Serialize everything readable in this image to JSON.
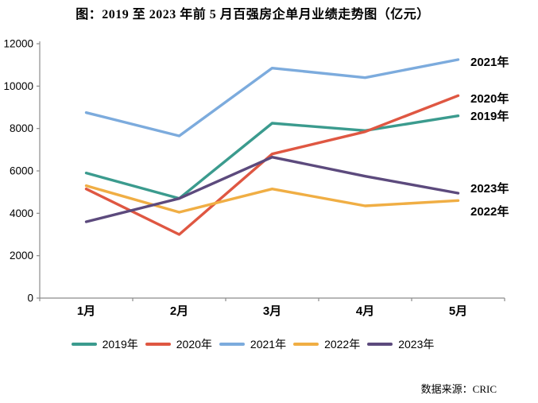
{
  "chart_data": {
    "type": "line",
    "title": "图：2019 至 2023 年前 5 月百强房企单月业绩走势图（亿元）",
    "unit": "亿元",
    "source": "数据来源：CRIC",
    "categories": [
      "1月",
      "2月",
      "3月",
      "4月",
      "5月"
    ],
    "series": [
      {
        "name": "2019年",
        "color": "#3B9B8E",
        "values": [
          5900,
          4700,
          8250,
          7900,
          8600
        ],
        "label_y": 151
      },
      {
        "name": "2020年",
        "color": "#DF5742",
        "values": [
          5150,
          3000,
          6800,
          7850,
          9550
        ],
        "label_y": 129
      },
      {
        "name": "2021年",
        "color": "#7CABDD",
        "values": [
          8750,
          7650,
          10850,
          10400,
          11250
        ],
        "label_y": 83
      },
      {
        "name": "2022年",
        "color": "#F0AE44",
        "values": [
          5300,
          4050,
          5150,
          4350,
          4600
        ],
        "label_y": 271
      },
      {
        "name": "2023年",
        "color": "#5C4A7D",
        "values": [
          3600,
          4700,
          6650,
          5750,
          4950
        ],
        "label_y": 242
      }
    ],
    "ylim": [
      0,
      12000
    ],
    "yticks": [
      0,
      2000,
      4000,
      6000,
      8000,
      10000,
      12000
    ],
    "right_label_x": 592,
    "grid": false,
    "legend_position": "bottom",
    "axis_color": "#8C8C8C"
  }
}
